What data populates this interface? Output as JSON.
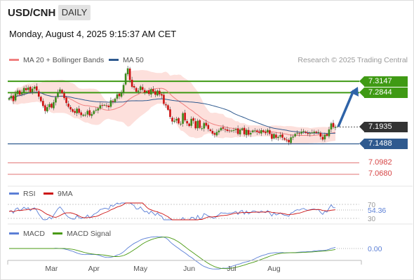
{
  "header": {
    "pair": "USD/CNH",
    "timeframe": "DAILY",
    "datetime": "Monday, August 4, 2025 9:15:37 AM CET"
  },
  "legend": {
    "ma20": "MA 20 + Bollinger Bands",
    "ma50": "MA 50",
    "rsi": "RSI",
    "rsi_ma": "9MA",
    "macd": "MACD",
    "macd_signal": "MACD Signal"
  },
  "credit": "Research © 2025 Trading Central",
  "colors": {
    "up": "#3a8a1a",
    "down": "#cc1111",
    "ma20": "#f08080",
    "ma50": "#2f5a8f",
    "band": "#fde0dc",
    "resistance": "#3f9a14",
    "support": "#2f5a8f",
    "support2": "#d64545",
    "current": "#333333",
    "arrow": "#2e63a8",
    "rsi": "#5b7fd6",
    "rsi_ma": "#cc1111",
    "macd": "#5b7fd6",
    "macd_signal": "#4a9a12"
  },
  "chart_data": {
    "type": "candlestick",
    "x_labels": [
      "Mar",
      "Apr",
      "May",
      "Jun",
      "Jul",
      "Aug"
    ],
    "ylim": [
      7.055,
      7.352
    ],
    "current_price": {
      "label": "7.1935",
      "value": 7.1935
    },
    "levels": [
      {
        "label": "7.3147",
        "value": 7.3147,
        "kind": "resistance"
      },
      {
        "label": "7.2844",
        "value": 7.2844,
        "kind": "resistance"
      },
      {
        "label": "7.1488",
        "value": 7.1488,
        "kind": "support"
      },
      {
        "label": "7.0982",
        "value": 7.0982,
        "kind": "support2"
      },
      {
        "label": "7.0680",
        "value": 7.068,
        "kind": "support2"
      }
    ],
    "target": 7.3,
    "close": [
      7.27,
      7.276,
      7.262,
      7.282,
      7.29,
      7.279,
      7.286,
      7.297,
      7.291,
      7.298,
      7.286,
      7.295,
      7.3,
      7.29,
      7.274,
      7.262,
      7.249,
      7.236,
      7.246,
      7.254,
      7.245,
      7.259,
      7.272,
      7.285,
      7.293,
      7.283,
      7.27,
      7.257,
      7.247,
      7.24,
      7.234,
      7.231,
      7.242,
      7.231,
      7.225,
      7.226,
      7.226,
      7.236,
      7.224,
      7.228,
      7.236,
      7.239,
      7.243,
      7.251,
      7.25,
      7.252,
      7.25,
      7.246,
      7.264,
      7.26,
      7.268,
      7.28,
      7.275,
      7.284,
      7.305,
      7.335,
      7.349,
      7.318,
      7.3,
      7.298,
      7.287,
      7.29,
      7.301,
      7.292,
      7.285,
      7.289,
      7.281,
      7.294,
      7.287,
      7.279,
      7.29,
      7.28,
      7.277,
      7.255,
      7.251,
      7.239,
      7.22,
      7.208,
      7.21,
      7.215,
      7.203,
      7.202,
      7.23,
      7.211,
      7.203,
      7.196,
      7.215,
      7.21,
      7.19,
      7.21,
      7.191,
      7.19,
      7.204,
      7.197,
      7.188,
      7.183,
      7.176,
      7.173,
      7.18,
      7.184,
      7.191,
      7.189,
      7.187,
      7.183,
      7.184,
      7.184,
      7.185,
      7.188,
      7.175,
      7.186,
      7.19,
      7.174,
      7.186,
      7.173,
      7.178,
      7.184,
      7.184,
      7.18,
      7.178,
      7.185,
      7.18,
      7.177,
      7.186,
      7.175,
      7.162,
      7.175,
      7.165,
      7.167,
      7.172,
      7.165,
      7.16,
      7.158,
      7.153,
      7.166,
      7.168,
      7.175,
      7.178,
      7.176,
      7.181,
      7.183,
      7.178,
      7.175,
      7.177,
      7.179,
      7.181,
      7.178,
      7.18,
      7.168,
      7.16,
      7.173,
      7.17,
      7.187,
      7.203,
      7.193,
      7.194
    ],
    "x_ticks": [
      {
        "label": "Mar",
        "index": 20
      },
      {
        "label": "Apr",
        "index": 40
      },
      {
        "label": "May",
        "index": 62
      },
      {
        "label": "Jun",
        "index": 85
      },
      {
        "label": "Jul",
        "index": 105
      },
      {
        "label": "Aug",
        "index": 125
      }
    ],
    "rsi": {
      "value": "54.36",
      "levels": [
        "70",
        "30"
      ]
    },
    "macd": {
      "value": "0.00"
    }
  }
}
